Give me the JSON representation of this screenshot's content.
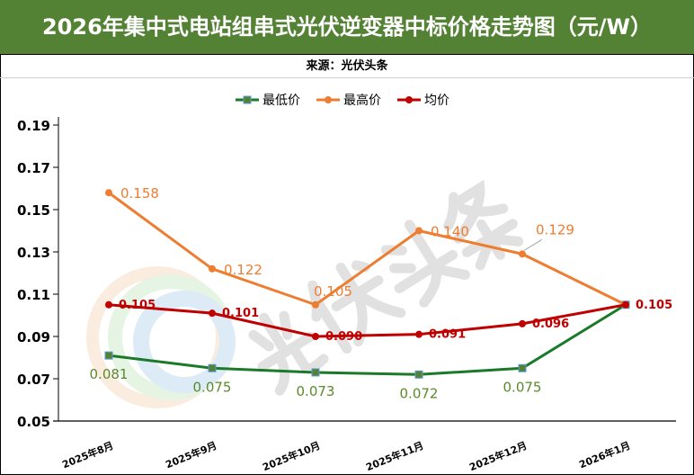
{
  "header": {
    "title": "2026年集中式电站组串式光伏逆变器中标价格走势图（元/W）",
    "source": "来源：光伏头条"
  },
  "watermark": "光伏头条",
  "colors": {
    "title_bg": "#548235",
    "low": "#1a7a2a",
    "high": "#ed7d31",
    "avg": "#c00000"
  },
  "chart_data": {
    "type": "line",
    "title": "2026年集中式电站组串式光伏逆变器中标价格走势图（元/W）",
    "categories": [
      "2025年8月",
      "2025年9月",
      "2025年10月",
      "2025年11月",
      "2025年12月",
      "2026年1月"
    ],
    "series": [
      {
        "name": "最低价",
        "values": [
          0.081,
          0.075,
          0.073,
          0.072,
          0.075,
          0.105
        ],
        "labels": [
          "0.081",
          "0.075",
          "0.073",
          "0.072",
          "0.075",
          ""
        ]
      },
      {
        "name": "最高价",
        "values": [
          0.158,
          0.122,
          0.105,
          0.14,
          0.129,
          0.105
        ],
        "labels": [
          "0.158",
          "0.122",
          "0.105",
          "0.140",
          "0.129",
          ""
        ]
      },
      {
        "name": "均价",
        "values": [
          0.105,
          0.101,
          0.09,
          0.091,
          0.096,
          0.105
        ],
        "labels": [
          "0.105",
          "0.101",
          "0.090",
          "0.091",
          "0.096",
          "0.105"
        ]
      }
    ],
    "yticks": [
      "0.05",
      "0.07",
      "0.09",
      "0.11",
      "0.13",
      "0.15",
      "0.17",
      "0.19"
    ],
    "ylim": [
      0.05,
      0.194
    ],
    "legend": "top-center",
    "grid": false
  }
}
